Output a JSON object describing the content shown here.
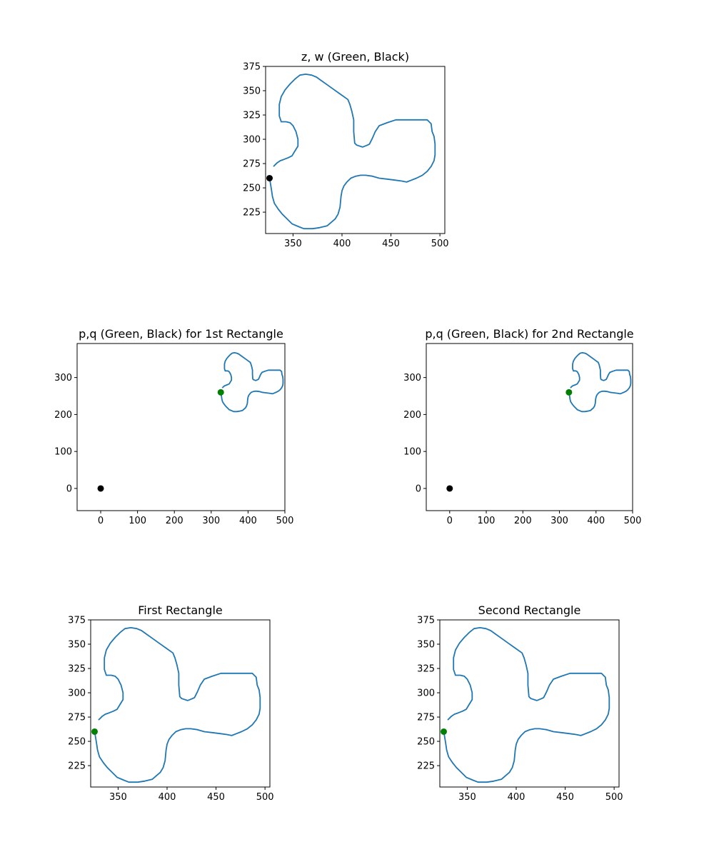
{
  "chart_data": [
    {
      "type": "line",
      "title": "z, w (Green, Black)",
      "xlim": [
        322,
        505
      ],
      "ylim": [
        203,
        375
      ],
      "xticks": [
        "350",
        "400",
        "450",
        "500"
      ],
      "yticks": [
        "225",
        "250",
        "275",
        "300",
        "325",
        "350",
        "375"
      ],
      "curve_color": "#1f77b4",
      "points": [
        {
          "x": 326,
          "y": 260,
          "color": "#000000"
        }
      ]
    },
    {
      "type": "line",
      "title": "p,q (Green, Black) for 1st Rectangle",
      "xlim": [
        -64,
        500
      ],
      "ylim": [
        -60,
        392
      ],
      "xticks": [
        "0",
        "100",
        "200",
        "300",
        "400",
        "500"
      ],
      "yticks": [
        "0",
        "100",
        "200",
        "300"
      ],
      "curve_color": "#1f77b4",
      "points": [
        {
          "x": 0,
          "y": 0,
          "color": "#000000"
        },
        {
          "x": 326,
          "y": 260,
          "color": "#008000"
        }
      ]
    },
    {
      "type": "line",
      "title": "p,q (Green, Black) for 2nd Rectangle",
      "xlim": [
        -64,
        500
      ],
      "ylim": [
        -60,
        392
      ],
      "xticks": [
        "0",
        "100",
        "200",
        "300",
        "400",
        "500"
      ],
      "yticks": [
        "0",
        "100",
        "200",
        "300"
      ],
      "curve_color": "#1f77b4",
      "points": [
        {
          "x": 0,
          "y": 0,
          "color": "#000000"
        },
        {
          "x": 326,
          "y": 260,
          "color": "#008000"
        }
      ]
    },
    {
      "type": "line",
      "title": "First Rectangle",
      "xlim": [
        322,
        505
      ],
      "ylim": [
        203,
        375
      ],
      "xticks": [
        "350",
        "400",
        "450",
        "500"
      ],
      "yticks": [
        "225",
        "250",
        "275",
        "300",
        "325",
        "350",
        "375"
      ],
      "curve_color": "#1f77b4",
      "points": [
        {
          "x": 326,
          "y": 260,
          "color": "#008000"
        }
      ]
    },
    {
      "type": "line",
      "title": "Second Rectangle",
      "xlim": [
        322,
        505
      ],
      "ylim": [
        203,
        375
      ],
      "xticks": [
        "350",
        "400",
        "450",
        "500"
      ],
      "yticks": [
        "225",
        "250",
        "275",
        "300",
        "325",
        "350",
        "375"
      ],
      "curve_color": "#1f77b4",
      "points": [
        {
          "x": 326,
          "y": 260,
          "color": "#008000"
        }
      ]
    }
  ],
  "shape": {
    "x": [
      330,
      334,
      337,
      340,
      345,
      349,
      352,
      355,
      355,
      353,
      350,
      347,
      343,
      338,
      336,
      336,
      338,
      342,
      347,
      352,
      357,
      363,
      369,
      374,
      378,
      385,
      392,
      399,
      406,
      408,
      410,
      412,
      412,
      413,
      415,
      421,
      426,
      428,
      431,
      434,
      438,
      446,
      455,
      463,
      471,
      479,
      487,
      491,
      492,
      494,
      495,
      495,
      494,
      491,
      487,
      482,
      476,
      471,
      466,
      461,
      454,
      446,
      438,
      431,
      424,
      419,
      414,
      409,
      405,
      402,
      400,
      399,
      398,
      396,
      393,
      385,
      377,
      370,
      365,
      361,
      356,
      349,
      344,
      339,
      335,
      331,
      329,
      328,
      327,
      326
    ],
    "y": [
      272,
      276,
      278,
      279,
      281,
      283,
      288,
      293,
      300,
      308,
      314,
      317,
      318,
      318,
      324,
      336,
      344,
      351,
      357,
      362,
      366,
      367,
      366,
      364,
      361,
      356,
      351,
      346,
      341,
      336,
      329,
      320,
      308,
      296,
      294,
      292,
      294,
      295,
      301,
      308,
      314,
      317,
      320,
      320,
      320,
      320,
      320,
      316,
      308,
      303,
      295,
      284,
      278,
      272,
      267,
      263,
      260,
      258,
      256,
      257,
      258,
      259,
      260,
      262,
      263,
      263,
      262,
      260,
      256,
      252,
      247,
      241,
      230,
      223,
      218,
      211,
      209,
      208,
      208,
      208,
      210,
      213,
      218,
      223,
      228,
      234,
      241,
      248,
      254,
      260
    ]
  }
}
